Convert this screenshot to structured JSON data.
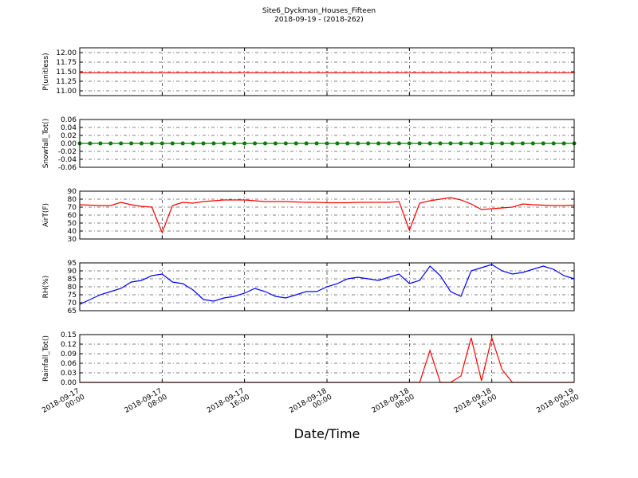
{
  "chart_data": [
    {
      "type": "line",
      "title": "Site6_Dyckman_Houses_Fifteen",
      "subtitle": "2018-09-19 - (2018-262)",
      "ylabel": "P(unitless)",
      "x": [
        "2018-09-17 00:00",
        "2018-09-17 01:00",
        "2018-09-17 02:00",
        "2018-09-17 03:00",
        "2018-09-17 04:00",
        "2018-09-17 05:00",
        "2018-09-17 06:00",
        "2018-09-17 07:00",
        "2018-09-17 08:00",
        "2018-09-17 09:00",
        "2018-09-17 10:00",
        "2018-09-17 11:00",
        "2018-09-17 12:00",
        "2018-09-17 13:00",
        "2018-09-17 14:00",
        "2018-09-17 15:00",
        "2018-09-17 16:00",
        "2018-09-17 17:00",
        "2018-09-17 18:00",
        "2018-09-17 19:00",
        "2018-09-17 20:00",
        "2018-09-17 21:00",
        "2018-09-17 22:00",
        "2018-09-17 23:00",
        "2018-09-18 00:00",
        "2018-09-18 01:00",
        "2018-09-18 02:00",
        "2018-09-18 03:00",
        "2018-09-18 04:00",
        "2018-09-18 05:00",
        "2018-09-18 06:00",
        "2018-09-18 07:00",
        "2018-09-18 08:00",
        "2018-09-18 09:00",
        "2018-09-18 10:00",
        "2018-09-18 11:00",
        "2018-09-18 12:00",
        "2018-09-18 13:00",
        "2018-09-18 14:00",
        "2018-09-18 15:00",
        "2018-09-18 16:00",
        "2018-09-18 17:00",
        "2018-09-18 18:00",
        "2018-09-18 19:00",
        "2018-09-18 20:00",
        "2018-09-18 21:00",
        "2018-09-18 22:00",
        "2018-09-18 23:00",
        "2018-09-19 00:00"
      ],
      "series": [
        {
          "color": "#ff0000",
          "values": [
            11.47,
            11.47,
            11.47,
            11.47,
            11.47,
            11.47,
            11.47,
            11.47,
            11.47,
            11.47,
            11.47,
            11.47,
            11.47,
            11.47,
            11.47,
            11.47,
            11.47,
            11.47,
            11.47,
            11.47,
            11.47,
            11.47,
            11.47,
            11.47,
            11.47,
            11.47,
            11.47,
            11.47,
            11.47,
            11.47,
            11.47,
            11.47,
            11.47,
            11.47,
            11.47,
            11.47,
            11.47,
            11.47,
            11.47,
            11.47,
            11.47,
            11.47,
            11.47,
            11.47,
            11.47,
            11.47,
            11.47,
            11.47,
            11.47
          ]
        }
      ],
      "xlim": [
        "2018-09-17 00:00",
        "2018-09-19 00:00"
      ],
      "ylim": [
        10.875,
        12.125
      ],
      "yticks": [
        {
          "value": 11,
          "label": "11.00"
        },
        11.25,
        {
          "value": 11.5,
          "label": "11.50"
        },
        11.75,
        {
          "value": 12,
          "label": "12.00"
        }
      ],
      "grid": true
    },
    {
      "type": "line",
      "ylabel": "Snowfall_Tot()",
      "x": [
        "2018-09-17 00:00",
        "2018-09-17 01:00",
        "2018-09-17 02:00",
        "2018-09-17 03:00",
        "2018-09-17 04:00",
        "2018-09-17 05:00",
        "2018-09-17 06:00",
        "2018-09-17 07:00",
        "2018-09-17 08:00",
        "2018-09-17 09:00",
        "2018-09-17 10:00",
        "2018-09-17 11:00",
        "2018-09-17 12:00",
        "2018-09-17 13:00",
        "2018-09-17 14:00",
        "2018-09-17 15:00",
        "2018-09-17 16:00",
        "2018-09-17 17:00",
        "2018-09-17 18:00",
        "2018-09-17 19:00",
        "2018-09-17 20:00",
        "2018-09-17 21:00",
        "2018-09-17 22:00",
        "2018-09-17 23:00",
        "2018-09-18 00:00",
        "2018-09-18 01:00",
        "2018-09-18 02:00",
        "2018-09-18 03:00",
        "2018-09-18 04:00",
        "2018-09-18 05:00",
        "2018-09-18 06:00",
        "2018-09-18 07:00",
        "2018-09-18 08:00",
        "2018-09-18 09:00",
        "2018-09-18 10:00",
        "2018-09-18 11:00",
        "2018-09-18 12:00",
        "2018-09-18 13:00",
        "2018-09-18 14:00",
        "2018-09-18 15:00",
        "2018-09-18 16:00",
        "2018-09-18 17:00",
        "2018-09-18 18:00",
        "2018-09-18 19:00",
        "2018-09-18 20:00",
        "2018-09-18 21:00",
        "2018-09-18 22:00",
        "2018-09-18 23:00",
        "2018-09-19 00:00"
      ],
      "series": [
        {
          "color": "#008000",
          "marker": "o",
          "values": [
            0,
            0,
            0,
            0,
            0,
            0,
            0,
            0,
            0,
            0,
            0,
            0,
            0,
            0,
            0,
            0,
            0,
            0,
            0,
            0,
            0,
            0,
            0,
            0,
            0,
            0,
            0,
            0,
            0,
            0,
            0,
            0,
            0,
            0,
            0,
            0,
            0,
            0,
            0,
            0,
            0,
            0,
            0,
            0,
            0,
            0,
            0,
            0,
            0
          ]
        }
      ],
      "xlim": [
        "2018-09-17 00:00",
        "2018-09-19 00:00"
      ],
      "ylim": [
        -0.06,
        0.06
      ],
      "yticks": [
        -0.06,
        -0.04,
        -0.02,
        {
          "value": 0,
          "label": "0.00"
        },
        0.02,
        0.04,
        0.06
      ],
      "grid": true
    },
    {
      "type": "line",
      "ylabel": "AirT(F)",
      "x": [
        "2018-09-17 00:00",
        "2018-09-17 01:00",
        "2018-09-17 02:00",
        "2018-09-17 03:00",
        "2018-09-17 04:00",
        "2018-09-17 05:00",
        "2018-09-17 06:00",
        "2018-09-17 07:00",
        "2018-09-17 08:00",
        "2018-09-17 09:00",
        "2018-09-17 10:00",
        "2018-09-17 11:00",
        "2018-09-17 12:00",
        "2018-09-17 13:00",
        "2018-09-17 14:00",
        "2018-09-17 15:00",
        "2018-09-17 16:00",
        "2018-09-17 17:00",
        "2018-09-17 18:00",
        "2018-09-17 19:00",
        "2018-09-17 20:00",
        "2018-09-17 21:00",
        "2018-09-17 22:00",
        "2018-09-17 23:00",
        "2018-09-18 00:00",
        "2018-09-18 01:00",
        "2018-09-18 02:00",
        "2018-09-18 03:00",
        "2018-09-18 04:00",
        "2018-09-18 05:00",
        "2018-09-18 06:00",
        "2018-09-18 07:00",
        "2018-09-18 08:00",
        "2018-09-18 09:00",
        "2018-09-18 10:00",
        "2018-09-18 11:00",
        "2018-09-18 12:00",
        "2018-09-18 13:00",
        "2018-09-18 14:00",
        "2018-09-18 15:00",
        "2018-09-18 16:00",
        "2018-09-18 17:00",
        "2018-09-18 18:00",
        "2018-09-18 19:00",
        "2018-09-18 20:00",
        "2018-09-18 21:00",
        "2018-09-18 22:00",
        "2018-09-18 23:00",
        "2018-09-19 00:00"
      ],
      "series": [
        {
          "color": "#ff0000",
          "values": [
            73,
            72.5,
            72,
            72,
            76,
            73,
            71,
            70,
            38,
            72,
            76,
            75,
            77,
            78,
            79,
            79,
            79,
            78,
            77,
            77,
            77,
            76.5,
            76,
            76,
            75.5,
            75.5,
            75.5,
            76,
            76,
            76,
            76,
            77,
            41,
            75,
            78,
            80,
            82,
            79,
            74,
            67,
            68,
            69,
            70,
            74,
            73,
            72.5,
            72,
            72,
            72.5
          ]
        }
      ],
      "xlim": [
        "2018-09-17 00:00",
        "2018-09-19 00:00"
      ],
      "ylim": [
        30,
        90
      ],
      "yticks": [
        30,
        40,
        50,
        60,
        70,
        80,
        90
      ],
      "grid": true
    },
    {
      "type": "line",
      "ylabel": "RH(%)",
      "x": [
        "2018-09-17 00:00",
        "2018-09-17 01:00",
        "2018-09-17 02:00",
        "2018-09-17 03:00",
        "2018-09-17 04:00",
        "2018-09-17 05:00",
        "2018-09-17 06:00",
        "2018-09-17 07:00",
        "2018-09-17 08:00",
        "2018-09-17 09:00",
        "2018-09-17 10:00",
        "2018-09-17 11:00",
        "2018-09-17 12:00",
        "2018-09-17 13:00",
        "2018-09-17 14:00",
        "2018-09-17 15:00",
        "2018-09-17 16:00",
        "2018-09-17 17:00",
        "2018-09-17 18:00",
        "2018-09-17 19:00",
        "2018-09-17 20:00",
        "2018-09-17 21:00",
        "2018-09-17 22:00",
        "2018-09-17 23:00",
        "2018-09-18 00:00",
        "2018-09-18 01:00",
        "2018-09-18 02:00",
        "2018-09-18 03:00",
        "2018-09-18 04:00",
        "2018-09-18 05:00",
        "2018-09-18 06:00",
        "2018-09-18 07:00",
        "2018-09-18 08:00",
        "2018-09-18 09:00",
        "2018-09-18 10:00",
        "2018-09-18 11:00",
        "2018-09-18 12:00",
        "2018-09-18 13:00",
        "2018-09-18 14:00",
        "2018-09-18 15:00",
        "2018-09-18 16:00",
        "2018-09-18 17:00",
        "2018-09-18 18:00",
        "2018-09-18 19:00",
        "2018-09-18 20:00",
        "2018-09-18 21:00",
        "2018-09-18 22:00",
        "2018-09-18 23:00",
        "2018-09-19 00:00"
      ],
      "series": [
        {
          "color": "#0000ff",
          "values": [
            69,
            72,
            75,
            77,
            79,
            83,
            84,
            87,
            88,
            83,
            82,
            78,
            72,
            71,
            73,
            74,
            76,
            79,
            77,
            74,
            73,
            75,
            77,
            77,
            80,
            82,
            85,
            86,
            85,
            84,
            86,
            88,
            82,
            84,
            93,
            87,
            77,
            74,
            90,
            92,
            94,
            90,
            88,
            89,
            91,
            93,
            91,
            87,
            85
          ]
        }
      ],
      "xlim": [
        "2018-09-17 00:00",
        "2018-09-19 00:00"
      ],
      "ylim": [
        65,
        95
      ],
      "yticks": [
        65,
        70,
        75,
        80,
        85,
        90,
        95
      ],
      "grid": true
    },
    {
      "type": "line",
      "ylabel": "Rainfall_Tot()",
      "xlabel": "Date/Time",
      "x": [
        "2018-09-17 00:00",
        "2018-09-17 01:00",
        "2018-09-17 02:00",
        "2018-09-17 03:00",
        "2018-09-17 04:00",
        "2018-09-17 05:00",
        "2018-09-17 06:00",
        "2018-09-17 07:00",
        "2018-09-17 08:00",
        "2018-09-17 09:00",
        "2018-09-17 10:00",
        "2018-09-17 11:00",
        "2018-09-17 12:00",
        "2018-09-17 13:00",
        "2018-09-17 14:00",
        "2018-09-17 15:00",
        "2018-09-17 16:00",
        "2018-09-17 17:00",
        "2018-09-17 18:00",
        "2018-09-17 19:00",
        "2018-09-17 20:00",
        "2018-09-17 21:00",
        "2018-09-17 22:00",
        "2018-09-17 23:00",
        "2018-09-18 00:00",
        "2018-09-18 01:00",
        "2018-09-18 02:00",
        "2018-09-18 03:00",
        "2018-09-18 04:00",
        "2018-09-18 05:00",
        "2018-09-18 06:00",
        "2018-09-18 07:00",
        "2018-09-18 08:00",
        "2018-09-18 09:00",
        "2018-09-18 10:00",
        "2018-09-18 11:00",
        "2018-09-18 12:00",
        "2018-09-18 13:00",
        "2018-09-18 14:00",
        "2018-09-18 15:00",
        "2018-09-18 16:00",
        "2018-09-18 17:00",
        "2018-09-18 18:00",
        "2018-09-18 19:00",
        "2018-09-18 20:00",
        "2018-09-18 21:00",
        "2018-09-18 22:00",
        "2018-09-18 23:00",
        "2018-09-19 00:00"
      ],
      "series": [
        {
          "color": "#ff0000",
          "values": [
            0,
            0,
            0,
            0,
            0,
            0,
            0,
            0,
            0,
            0,
            0,
            0,
            0,
            0,
            0,
            0,
            0,
            0,
            0,
            0,
            0,
            0,
            0,
            0,
            0,
            0,
            0,
            0,
            0,
            0,
            0,
            0,
            0,
            0,
            0.1,
            0,
            0,
            0.02,
            0.14,
            0.005,
            0.14,
            0.04,
            0,
            0,
            0,
            0,
            0,
            0,
            0
          ]
        }
      ],
      "xlim": [
        "2018-09-17 00:00",
        "2018-09-19 00:00"
      ],
      "ylim": [
        0,
        0.15
      ],
      "yticks": [
        {
          "value": 0,
          "label": "0.00"
        },
        0.03,
        0.06,
        0.09,
        0.12,
        0.15
      ],
      "xticks": [
        {
          "value": "2018-09-17 00:00",
          "label": "2018-09-17\n00:00"
        },
        {
          "value": "2018-09-17 08:00",
          "label": "2018-09-17\n08:00"
        },
        {
          "value": "2018-09-17 16:00",
          "label": "2018-09-17\n16:00"
        },
        {
          "value": "2018-09-18 00:00",
          "label": "2018-09-18\n00:00"
        },
        {
          "value": "2018-09-18 08:00",
          "label": "2018-09-18\n08:00"
        },
        {
          "value": "2018-09-18 16:00",
          "label": "2018-09-18\n16:00"
        },
        {
          "value": "2018-09-19 00:00",
          "label": "2018-09-19\n00:00"
        }
      ],
      "grid": true
    }
  ]
}
